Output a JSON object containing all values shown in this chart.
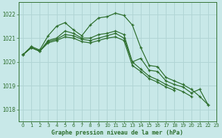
{
  "background_color": "#c8e8e8",
  "grid_color": "#b0d4d4",
  "line_color": "#2d6e2d",
  "title": "Graphe pression niveau de la mer (hPa)",
  "xlim": [
    -0.5,
    23
  ],
  "ylim": [
    1017.5,
    1022.5
  ],
  "yticks": [
    1018,
    1019,
    1020,
    1021,
    1022
  ],
  "xticks": [
    0,
    1,
    2,
    3,
    4,
    5,
    6,
    7,
    8,
    9,
    10,
    11,
    12,
    13,
    14,
    15,
    16,
    17,
    18,
    19,
    20,
    21,
    22,
    23
  ],
  "series": [
    {
      "x": [
        0,
        1,
        2,
        3,
        4,
        5,
        6,
        7,
        8,
        9,
        10,
        11,
        12,
        13,
        14,
        15,
        16,
        17,
        18,
        19,
        20,
        21,
        22
      ],
      "y": [
        1020.3,
        1020.6,
        1020.5,
        1021.0,
        1021.2,
        1021.4,
        1021.55,
        1021.7,
        1021.85,
        1021.9,
        1021.95,
        1022.05,
        1021.95,
        1021.6,
        1020.8,
        1020.1,
        1019.8,
        1019.6,
        1019.4,
        1019.1,
        1018.85,
        1018.55,
        1018.2
      ]
    },
    {
      "x": [
        0,
        1,
        2,
        3,
        4,
        5,
        6,
        7,
        8,
        9,
        10,
        11,
        12,
        13,
        14,
        15,
        16,
        17,
        18,
        19,
        20,
        21,
        22
      ],
      "y": [
        1020.3,
        1020.6,
        1020.5,
        1021.0,
        1021.1,
        1021.2,
        1021.25,
        1021.3,
        1021.3,
        1021.35,
        1021.4,
        1021.45,
        1021.3,
        1020.5,
        1019.9,
        1019.55,
        1019.35,
        1019.2,
        1019.05,
        1018.9,
        1018.7,
        1018.85,
        1018.2
      ]
    },
    {
      "x": [
        0,
        1,
        2,
        3,
        4,
        5,
        6,
        7,
        8,
        9,
        10,
        11,
        12,
        13,
        14,
        15,
        16,
        17,
        18,
        19,
        20,
        21,
        22
      ],
      "y": [
        1020.3,
        1020.6,
        1020.5,
        1021.0,
        1021.05,
        1021.1,
        1021.15,
        1021.2,
        1021.2,
        1021.25,
        1021.3,
        1021.35,
        1021.2,
        1020.3,
        1019.8,
        1019.45,
        1019.25,
        1019.1,
        1018.95,
        1018.8,
        1018.6,
        1018.8,
        1018.2
      ]
    },
    {
      "x": [
        0,
        1,
        2,
        3,
        4,
        5
      ],
      "y": [
        1020.3,
        1020.6,
        1020.5,
        1021.05,
        1021.5,
        1021.7
      ]
    }
  ]
}
